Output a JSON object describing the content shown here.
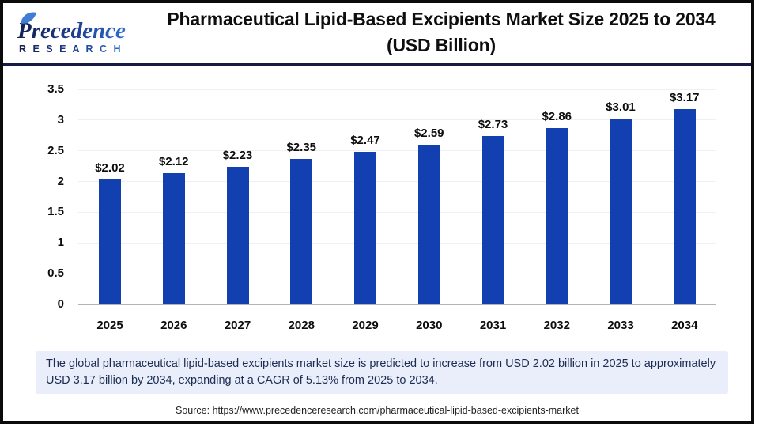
{
  "header": {
    "logo_name": "Precedence",
    "logo_subname": "R E S E A R C H",
    "title_line1": "Pharmaceutical Lipid-Based Excipients Market Size 2025 to 2034",
    "title_line2": "(USD Billion)"
  },
  "chart_data": {
    "type": "bar",
    "title": "Pharmaceutical Lipid-Based Excipients Market Size 2025 to 2034 (USD Billion)",
    "categories": [
      "2025",
      "2026",
      "2027",
      "2028",
      "2029",
      "2030",
      "2031",
      "2032",
      "2033",
      "2034"
    ],
    "values": [
      2.02,
      2.12,
      2.23,
      2.35,
      2.47,
      2.59,
      2.73,
      2.86,
      3.01,
      3.17
    ],
    "value_labels": [
      "$2.02",
      "$2.12",
      "$2.23",
      "$2.35",
      "$2.47",
      "$2.59",
      "$2.73",
      "$2.86",
      "$3.01",
      "$3.17"
    ],
    "xlabel": "",
    "ylabel": "",
    "ylim": [
      0,
      3.5
    ],
    "yticks": [
      0,
      0.5,
      1,
      1.5,
      2,
      2.5,
      3,
      3.5
    ],
    "ytick_labels": [
      "0",
      "0.5",
      "1",
      "1.5",
      "2",
      "2.5",
      "3",
      "3.5"
    ],
    "grid": true,
    "legend": false,
    "bar_color": "#1240b0",
    "gridline_color": "#eef0f4",
    "baseline_color": "#b0b3b8"
  },
  "note": {
    "text": "The global pharmaceutical lipid-based excipients market size is predicted to increase from USD 2.02 billion in 2025 to approximately USD 3.17 billion by 2034, expanding at a CAGR of 5.13% from 2025 to 2034."
  },
  "source": {
    "text": "Source: https://www.precedenceresearch.com/pharmaceutical-lipid-based-excipients-market"
  },
  "colors": {
    "accent_navy": "#161c44",
    "bar_blue": "#1240b0",
    "note_bg": "#e9eefa",
    "logo_dark": "#131f52",
    "logo_blue": "#2e6fd0"
  }
}
